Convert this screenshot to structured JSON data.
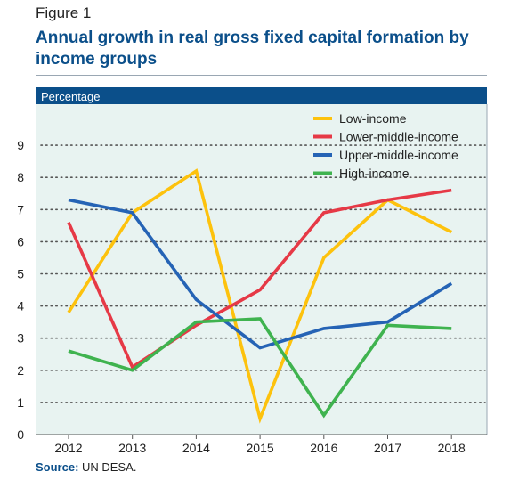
{
  "figure_label": "Figure 1",
  "title": "Annual growth in real gross fixed capital formation by income groups",
  "source": {
    "label": "Source:",
    "text": "UN DESA."
  },
  "colors": {
    "header_bar": "#0b4f8a",
    "plot_background": "#e8f3f1",
    "title": "#0b4f8a"
  },
  "chart_data": {
    "type": "line",
    "ylabel": "Percentage",
    "x": [
      "2012",
      "2013",
      "2014",
      "2015",
      "2016",
      "2017",
      "2018"
    ],
    "ylim": [
      0,
      10
    ],
    "yticks": [
      "0",
      "1",
      "2",
      "3",
      "4",
      "5",
      "6",
      "7",
      "8",
      "9"
    ],
    "grid": "horizontal dotted",
    "legend_position": "top-right",
    "series": [
      {
        "name": "Low-income",
        "color": "#fdc20d",
        "values": [
          3.8,
          6.9,
          8.2,
          0.5,
          5.5,
          7.3,
          6.3
        ]
      },
      {
        "name": "Lower-middle-income",
        "color": "#e63946",
        "values": [
          6.6,
          2.1,
          3.4,
          4.5,
          6.9,
          7.3,
          7.6
        ]
      },
      {
        "name": "Upper-middle-income",
        "color": "#2563b5",
        "values": [
          7.3,
          6.9,
          4.2,
          2.7,
          3.3,
          3.5,
          4.7
        ]
      },
      {
        "name": "High-income",
        "color": "#3fb34f",
        "values": [
          2.6,
          2.0,
          3.5,
          3.6,
          0.6,
          3.4,
          3.3
        ]
      }
    ]
  }
}
